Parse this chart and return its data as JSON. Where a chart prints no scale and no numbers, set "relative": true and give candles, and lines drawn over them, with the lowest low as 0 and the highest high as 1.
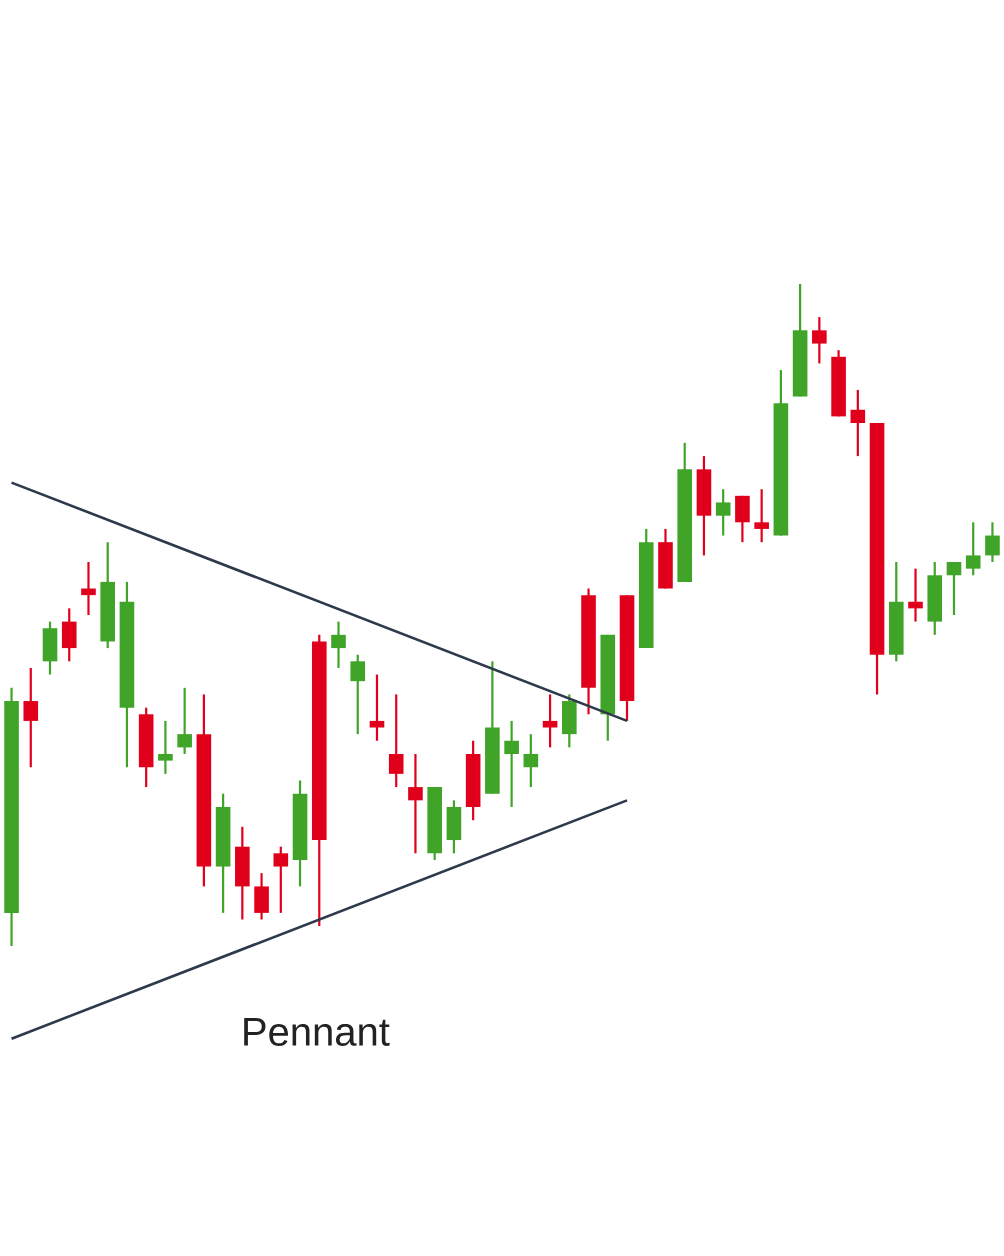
{
  "chart_data": {
    "type": "candlestick",
    "relative": true,
    "categories": [
      null,
      null,
      null,
      null,
      null,
      null,
      null,
      null,
      null,
      null,
      null,
      null,
      null,
      null,
      null,
      null,
      null,
      null,
      null,
      null,
      null,
      null,
      null,
      null,
      null,
      null,
      null,
      null,
      null,
      null,
      null,
      null,
      null,
      null,
      null,
      null,
      null,
      null,
      null,
      null,
      null,
      null,
      null,
      null,
      null,
      null,
      null,
      null,
      null,
      null,
      null,
      null
    ],
    "ohlc": [
      [
        0.05,
        0.39,
        0,
        0.37
      ],
      [
        0.37,
        0.42,
        0.27,
        0.34
      ],
      [
        0.43,
        0.49,
        0.41,
        0.48
      ],
      [
        0.49,
        0.51,
        0.43,
        0.45
      ],
      [
        0.54,
        0.58,
        0.5,
        0.53
      ],
      [
        0.46,
        0.61,
        0.45,
        0.55
      ],
      [
        0.36,
        0.55,
        0.27,
        0.52
      ],
      [
        0.35,
        0.36,
        0.24,
        0.27
      ],
      [
        0.28,
        0.34,
        0.26,
        0.29
      ],
      [
        0.3,
        0.39,
        0.29,
        0.32
      ],
      [
        0.32,
        0.38,
        0.09,
        0.12
      ],
      [
        0.12,
        0.23,
        0.05,
        0.21
      ],
      [
        0.15,
        0.18,
        0.04,
        0.09
      ],
      [
        0.09,
        0.11,
        0.04,
        0.05
      ],
      [
        0.14,
        0.15,
        0.05,
        0.12
      ],
      [
        0.13,
        0.25,
        0.09,
        0.23
      ],
      [
        0.46,
        0.47,
        0.03,
        0.16
      ],
      [
        0.45,
        0.49,
        0.42,
        0.47
      ],
      [
        0.4,
        0.44,
        0.32,
        0.43
      ],
      [
        0.34,
        0.41,
        0.31,
        0.33
      ],
      [
        0.29,
        0.38,
        0.24,
        0.26
      ],
      [
        0.24,
        0.29,
        0.14,
        0.22
      ],
      [
        0.14,
        0.24,
        0.13,
        0.24
      ],
      [
        0.16,
        0.22,
        0.14,
        0.21
      ],
      [
        0.29,
        0.31,
        0.19,
        0.21
      ],
      [
        0.23,
        0.43,
        0.23,
        0.33
      ],
      [
        0.29,
        0.34,
        0.21,
        0.31
      ],
      [
        0.27,
        0.32,
        0.24,
        0.29
      ],
      [
        0.34,
        0.38,
        0.3,
        0.33
      ],
      [
        0.32,
        0.38,
        0.3,
        0.37
      ],
      [
        0.53,
        0.54,
        0.35,
        0.39
      ],
      [
        0.35,
        0.47,
        0.31,
        0.47
      ],
      [
        0.53,
        0.53,
        0.34,
        0.37
      ],
      [
        0.45,
        0.63,
        0.45,
        0.61
      ],
      [
        0.61,
        0.63,
        0.54,
        0.54
      ],
      [
        0.55,
        0.76,
        0.55,
        0.72
      ],
      [
        0.72,
        0.74,
        0.59,
        0.65
      ],
      [
        0.65,
        0.69,
        0.62,
        0.67
      ],
      [
        0.68,
        0.68,
        0.61,
        0.64
      ],
      [
        0.64,
        0.69,
        0.61,
        0.63
      ],
      [
        0.62,
        0.87,
        0.62,
        0.82
      ],
      [
        0.83,
        1.0,
        0.83,
        0.93
      ],
      [
        0.93,
        0.95,
        0.88,
        0.91
      ],
      [
        0.89,
        0.9,
        0.8,
        0.8
      ],
      [
        0.81,
        0.84,
        0.74,
        0.79
      ],
      [
        0.79,
        0.79,
        0.38,
        0.44
      ],
      [
        0.44,
        0.58,
        0.43,
        0.52
      ],
      [
        0.52,
        0.57,
        0.49,
        0.51
      ],
      [
        0.49,
        0.58,
        0.47,
        0.56
      ],
      [
        0.56,
        0.58,
        0.5,
        0.58
      ],
      [
        0.57,
        0.64,
        0.56,
        0.59
      ],
      [
        0.59,
        0.64,
        0.58,
        0.62
      ]
    ],
    "colors": [
      "#3fa428",
      "#e0001b",
      "#3fa428",
      "#e0001b",
      "#e0001b",
      "#3fa428",
      "#3fa428",
      "#e0001b",
      "#3fa428",
      "#3fa428",
      "#e0001b",
      "#3fa428",
      "#e0001b",
      "#e0001b",
      "#e0001b",
      "#3fa428",
      "#e0001b",
      "#3fa428",
      "#3fa428",
      "#e0001b",
      "#e0001b",
      "#e0001b",
      "#3fa428",
      "#3fa428",
      "#e0001b",
      "#3fa428",
      "#3fa428",
      "#3fa428",
      "#e0001b",
      "#3fa428",
      "#e0001b",
      "#3fa428",
      "#e0001b",
      "#3fa428",
      "#e0001b",
      "#3fa428",
      "#e0001b",
      "#3fa428",
      "#e0001b",
      "#e0001b",
      "#3fa428",
      "#3fa428",
      "#e0001b",
      "#e0001b",
      "#e0001b",
      "#e0001b",
      "#3fa428",
      "#e0001b",
      "#3fa428",
      "#3fa428",
      "#3fa428",
      "#3fa428"
    ],
    "series": [
      {
        "type": "line",
        "values": [
          0.7,
          null,
          null,
          null,
          null,
          null,
          null,
          null,
          null,
          null,
          null,
          null,
          null,
          null,
          null,
          null,
          null,
          null,
          null,
          null,
          null,
          null,
          null,
          null,
          null,
          null,
          null,
          null,
          null,
          null,
          null,
          null,
          0.34,
          null,
          null,
          null,
          null,
          null,
          null,
          null,
          null,
          null,
          null,
          null,
          null,
          null,
          null,
          null,
          null,
          null,
          null,
          null
        ],
        "color": "#2e3a4c"
      },
      {
        "type": "line",
        "values": [
          -0.14,
          null,
          null,
          null,
          null,
          null,
          null,
          null,
          null,
          null,
          null,
          null,
          null,
          null,
          null,
          null,
          null,
          null,
          null,
          null,
          null,
          null,
          null,
          null,
          null,
          null,
          null,
          null,
          null,
          null,
          null,
          null,
          0.22,
          null,
          null,
          null,
          null,
          null,
          null,
          null,
          null,
          null,
          null,
          null,
          null,
          null,
          null,
          null,
          null,
          null,
          null,
          null
        ],
        "color": "#2e3a4c"
      }
    ],
    "annotations": [
      "Pennant"
    ]
  }
}
